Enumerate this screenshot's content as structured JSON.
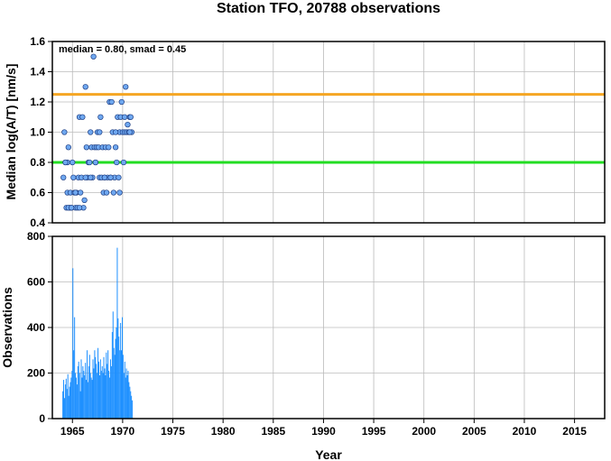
{
  "chart_data": [
    {
      "type": "scatter",
      "title": "Station TFO, 20788 observations",
      "xlabel": "",
      "ylabel": "Median log(A/T) [nm/s]",
      "xlim": [
        1963,
        2018
      ],
      "ylim": [
        0.4,
        1.6
      ],
      "yticks": [
        "0.4",
        "0.6",
        "0.8",
        "1.0",
        "1.2",
        "1.4",
        "1.6"
      ],
      "grid": true,
      "annotation": "median = 0.80, smad = 0.45",
      "reference_lines": [
        {
          "y": 1.25,
          "color": "#f5a623"
        },
        {
          "y": 0.8,
          "color": "#22dd22"
        }
      ],
      "point_color": "#6fa8f0",
      "x": [
        1964.1,
        1964.2,
        1964.3,
        1964.4,
        1964.5,
        1964.5,
        1964.6,
        1964.7,
        1964.8,
        1964.9,
        1965.0,
        1965.1,
        1965.2,
        1965.3,
        1965.4,
        1965.5,
        1965.6,
        1965.7,
        1965.8,
        1965.9,
        1966.0,
        1966.1,
        1966.2,
        1966.3,
        1966.4,
        1966.5,
        1966.6,
        1966.7,
        1966.8,
        1966.9,
        1967.0,
        1967.1,
        1967.2,
        1967.3,
        1967.4,
        1967.5,
        1967.6,
        1967.7,
        1967.8,
        1967.9,
        1968.0,
        1968.1,
        1968.2,
        1968.3,
        1968.4,
        1968.5,
        1968.6,
        1968.7,
        1968.8,
        1968.9,
        1969.0,
        1969.1,
        1969.2,
        1969.3,
        1969.4,
        1969.5,
        1969.6,
        1969.7,
        1969.8,
        1969.9,
        1970.0,
        1970.1,
        1970.2,
        1970.3,
        1970.4,
        1970.5,
        1970.6,
        1970.7,
        1970.8,
        1970.9,
        1964.3,
        1964.6,
        1964.9,
        1965.3,
        1965.7,
        1966.3,
        1966.8,
        1967.3,
        1967.7,
        1968.2,
        1968.8,
        1969.3,
        1969.7,
        1970.2,
        1970.7
      ],
      "y": [
        0.7,
        1.0,
        0.8,
        0.5,
        0.8,
        0.6,
        0.9,
        0.5,
        0.6,
        0.5,
        0.8,
        0.7,
        0.6,
        0.5,
        0.6,
        0.5,
        0.7,
        1.1,
        0.6,
        0.7,
        1.1,
        0.5,
        0.55,
        1.3,
        0.9,
        0.7,
        0.8,
        0.8,
        1.0,
        0.9,
        0.7,
        1.5,
        0.9,
        0.8,
        0.9,
        1.0,
        0.9,
        0.7,
        1.1,
        0.7,
        0.9,
        0.6,
        0.7,
        0.9,
        0.6,
        0.7,
        0.9,
        1.2,
        0.7,
        1.2,
        1.0,
        0.6,
        0.7,
        0.9,
        0.8,
        1.1,
        0.7,
        1.0,
        1.1,
        1.2,
        1.0,
        0.8,
        1.0,
        1.3,
        1.0,
        1.05,
        1.0,
        1.1,
        1.1,
        1.0,
        0.8,
        0.5,
        0.5,
        0.6,
        0.5,
        0.7,
        0.7,
        0.8,
        1.0,
        0.7,
        0.7,
        1.0,
        0.6,
        1.1,
        1.0
      ]
    },
    {
      "type": "bar",
      "title": "",
      "xlabel": "Year",
      "ylabel": "Observations",
      "xlim": [
        1963,
        2018
      ],
      "ylim": [
        0,
        800
      ],
      "xticks": [
        "1965",
        "1970",
        "1975",
        "1980",
        "1985",
        "1990",
        "1995",
        "2000",
        "2005",
        "2010",
        "2015"
      ],
      "yticks": [
        "0",
        "200",
        "400",
        "600",
        "800"
      ],
      "grid": true,
      "bar_color": "#1e90ff",
      "x": [
        1964.0,
        1964.08,
        1964.17,
        1964.25,
        1964.33,
        1964.42,
        1964.5,
        1964.58,
        1964.67,
        1964.75,
        1964.83,
        1964.92,
        1965.0,
        1965.08,
        1965.17,
        1965.25,
        1965.33,
        1965.42,
        1965.5,
        1965.58,
        1965.67,
        1965.75,
        1965.83,
        1965.92,
        1966.0,
        1966.08,
        1966.17,
        1966.25,
        1966.33,
        1966.42,
        1966.5,
        1966.58,
        1966.67,
        1966.75,
        1966.83,
        1966.92,
        1967.0,
        1967.08,
        1967.17,
        1967.25,
        1967.33,
        1967.42,
        1967.5,
        1967.58,
        1967.67,
        1967.75,
        1967.83,
        1967.92,
        1968.0,
        1968.08,
        1968.17,
        1968.25,
        1968.33,
        1968.42,
        1968.5,
        1968.58,
        1968.67,
        1968.75,
        1968.83,
        1968.92,
        1969.0,
        1969.08,
        1969.17,
        1969.25,
        1969.33,
        1969.42,
        1969.5,
        1969.58,
        1969.67,
        1969.75,
        1969.83,
        1969.92,
        1970.0,
        1970.08,
        1970.17,
        1970.25,
        1970.33,
        1970.42,
        1970.5,
        1970.58,
        1970.67,
        1970.75,
        1970.83,
        1970.92
      ],
      "values": [
        120,
        170,
        90,
        150,
        175,
        130,
        195,
        100,
        140,
        160,
        180,
        210,
        660,
        300,
        445,
        200,
        180,
        150,
        230,
        250,
        200,
        120,
        260,
        180,
        230,
        210,
        190,
        245,
        170,
        300,
        160,
        230,
        280,
        200,
        180,
        170,
        260,
        220,
        300,
        270,
        240,
        200,
        310,
        250,
        190,
        260,
        210,
        230,
        200,
        270,
        220,
        190,
        290,
        240,
        300,
        210,
        180,
        260,
        230,
        380,
        470,
        310,
        280,
        350,
        400,
        750,
        440,
        360,
        300,
        420,
        300,
        445,
        280,
        200,
        250,
        180,
        220,
        190,
        210,
        160,
        140,
        120,
        100,
        80
      ]
    }
  ]
}
